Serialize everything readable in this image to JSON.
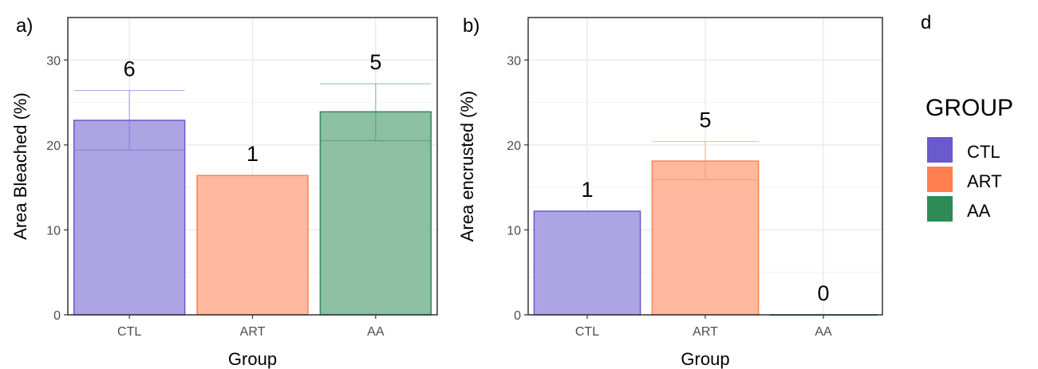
{
  "legend": {
    "title": "GROUP",
    "items": [
      {
        "label": "CTL",
        "color": "#6A5ACD"
      },
      {
        "label": "ART",
        "color": "#FF7F50"
      },
      {
        "label": "AA",
        "color": "#2E8B57"
      }
    ]
  },
  "extra_label": "d",
  "chart_data": [
    {
      "type": "bar",
      "panel": "a)",
      "title": "",
      "xlabel": "Group",
      "ylabel": "Area Bleached (%)",
      "ylim": [
        0,
        35
      ],
      "yticks": [
        0,
        10,
        20,
        30
      ],
      "grid": true,
      "categories": [
        "CTL",
        "ART",
        "AA"
      ],
      "values": [
        22.9,
        16.4,
        23.9
      ],
      "error_low": [
        19.4,
        null,
        20.5
      ],
      "error_high": [
        26.4,
        null,
        27.2
      ],
      "counts": [
        "6",
        "1",
        "5"
      ]
    },
    {
      "type": "bar",
      "panel": "b)",
      "title": "",
      "xlabel": "Group",
      "ylabel": "Area encrusted (%)",
      "ylim": [
        0,
        35
      ],
      "yticks": [
        0,
        10,
        20,
        30
      ],
      "grid": true,
      "categories": [
        "CTL",
        "ART",
        "AA"
      ],
      "values": [
        12.2,
        18.1,
        0
      ],
      "error_low": [
        null,
        15.9,
        null
      ],
      "error_high": [
        null,
        20.4,
        null
      ],
      "counts": [
        "1",
        "5",
        "0"
      ]
    }
  ]
}
